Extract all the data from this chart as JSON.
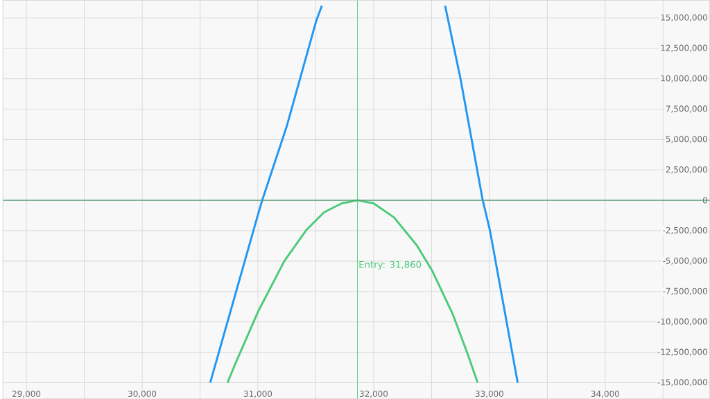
{
  "chart_data": {
    "type": "line",
    "xlim": [
      28797,
      34903
    ],
    "ylim": [
      -16330000,
      16450000
    ],
    "xticks": [
      {
        "value": 29000,
        "label": "29,000"
      },
      {
        "value": 29500,
        "label": null
      },
      {
        "value": 30000,
        "label": "30,000"
      },
      {
        "value": 30500,
        "label": null
      },
      {
        "value": 31000,
        "label": "31,000"
      },
      {
        "value": 31500,
        "label": null
      },
      {
        "value": 32000,
        "label": "32,000"
      },
      {
        "value": 32500,
        "label": null
      },
      {
        "value": 33000,
        "label": "33,000"
      },
      {
        "value": 33500,
        "label": null
      },
      {
        "value": 34000,
        "label": "34,000"
      },
      {
        "value": 34500,
        "label": null
      }
    ],
    "yticks": [
      {
        "value": -15000000,
        "label": "-15,000,000"
      },
      {
        "value": -12500000,
        "label": "-12,500,000"
      },
      {
        "value": -10000000,
        "label": "-10,000,000"
      },
      {
        "value": -7500000,
        "label": "-7,500,000"
      },
      {
        "value": -5000000,
        "label": "-5,000,000"
      },
      {
        "value": -2500000,
        "label": "-2,500,000"
      },
      0,
      {
        "value": 2500000,
        "label": "2,500,000"
      },
      {
        "value": 5000000,
        "label": "5,000,000"
      },
      {
        "value": 7500000,
        "label": "7,500,000"
      },
      {
        "value": 10000000,
        "label": "10,000,000"
      },
      {
        "value": 12500000,
        "label": "12,500,000"
      },
      {
        "value": 15000000,
        "label": "15,000,000"
      }
    ],
    "grid": true,
    "series": [
      {
        "color": "#2196f3",
        "x": [
          30588,
          31000,
          31037,
          31251,
          31504,
          31552,
          32085,
          32617,
          32750,
          32942,
          33004,
          33244
        ],
        "values": [
          -15000000,
          -1190000,
          0,
          6150000,
          14770000,
          16000000,
          null,
          16000000,
          10000000,
          0,
          -2460000,
          -15000000
        ]
      },
      {
        "color": "#4cca7a",
        "x": [
          30737,
          30798,
          31000,
          31229,
          31417,
          31571,
          31725,
          31860,
          31999,
          32176,
          32374,
          32507,
          32684,
          32816,
          32898
        ],
        "values": [
          -15000000,
          -13590000,
          -9180000,
          -4980000,
          -2460000,
          -990000,
          -250000,
          0,
          -250000,
          -1410000,
          -3720000,
          -5820000,
          -9390000,
          -12750000,
          -15000000
        ]
      }
    ],
    "ref_lines": [
      {
        "axis": "y",
        "value": 0,
        "color": "#5a9e7a"
      },
      {
        "axis": "x",
        "value": 31860,
        "label": "Entry: 31,860",
        "color": "#4cca7a"
      }
    ]
  }
}
